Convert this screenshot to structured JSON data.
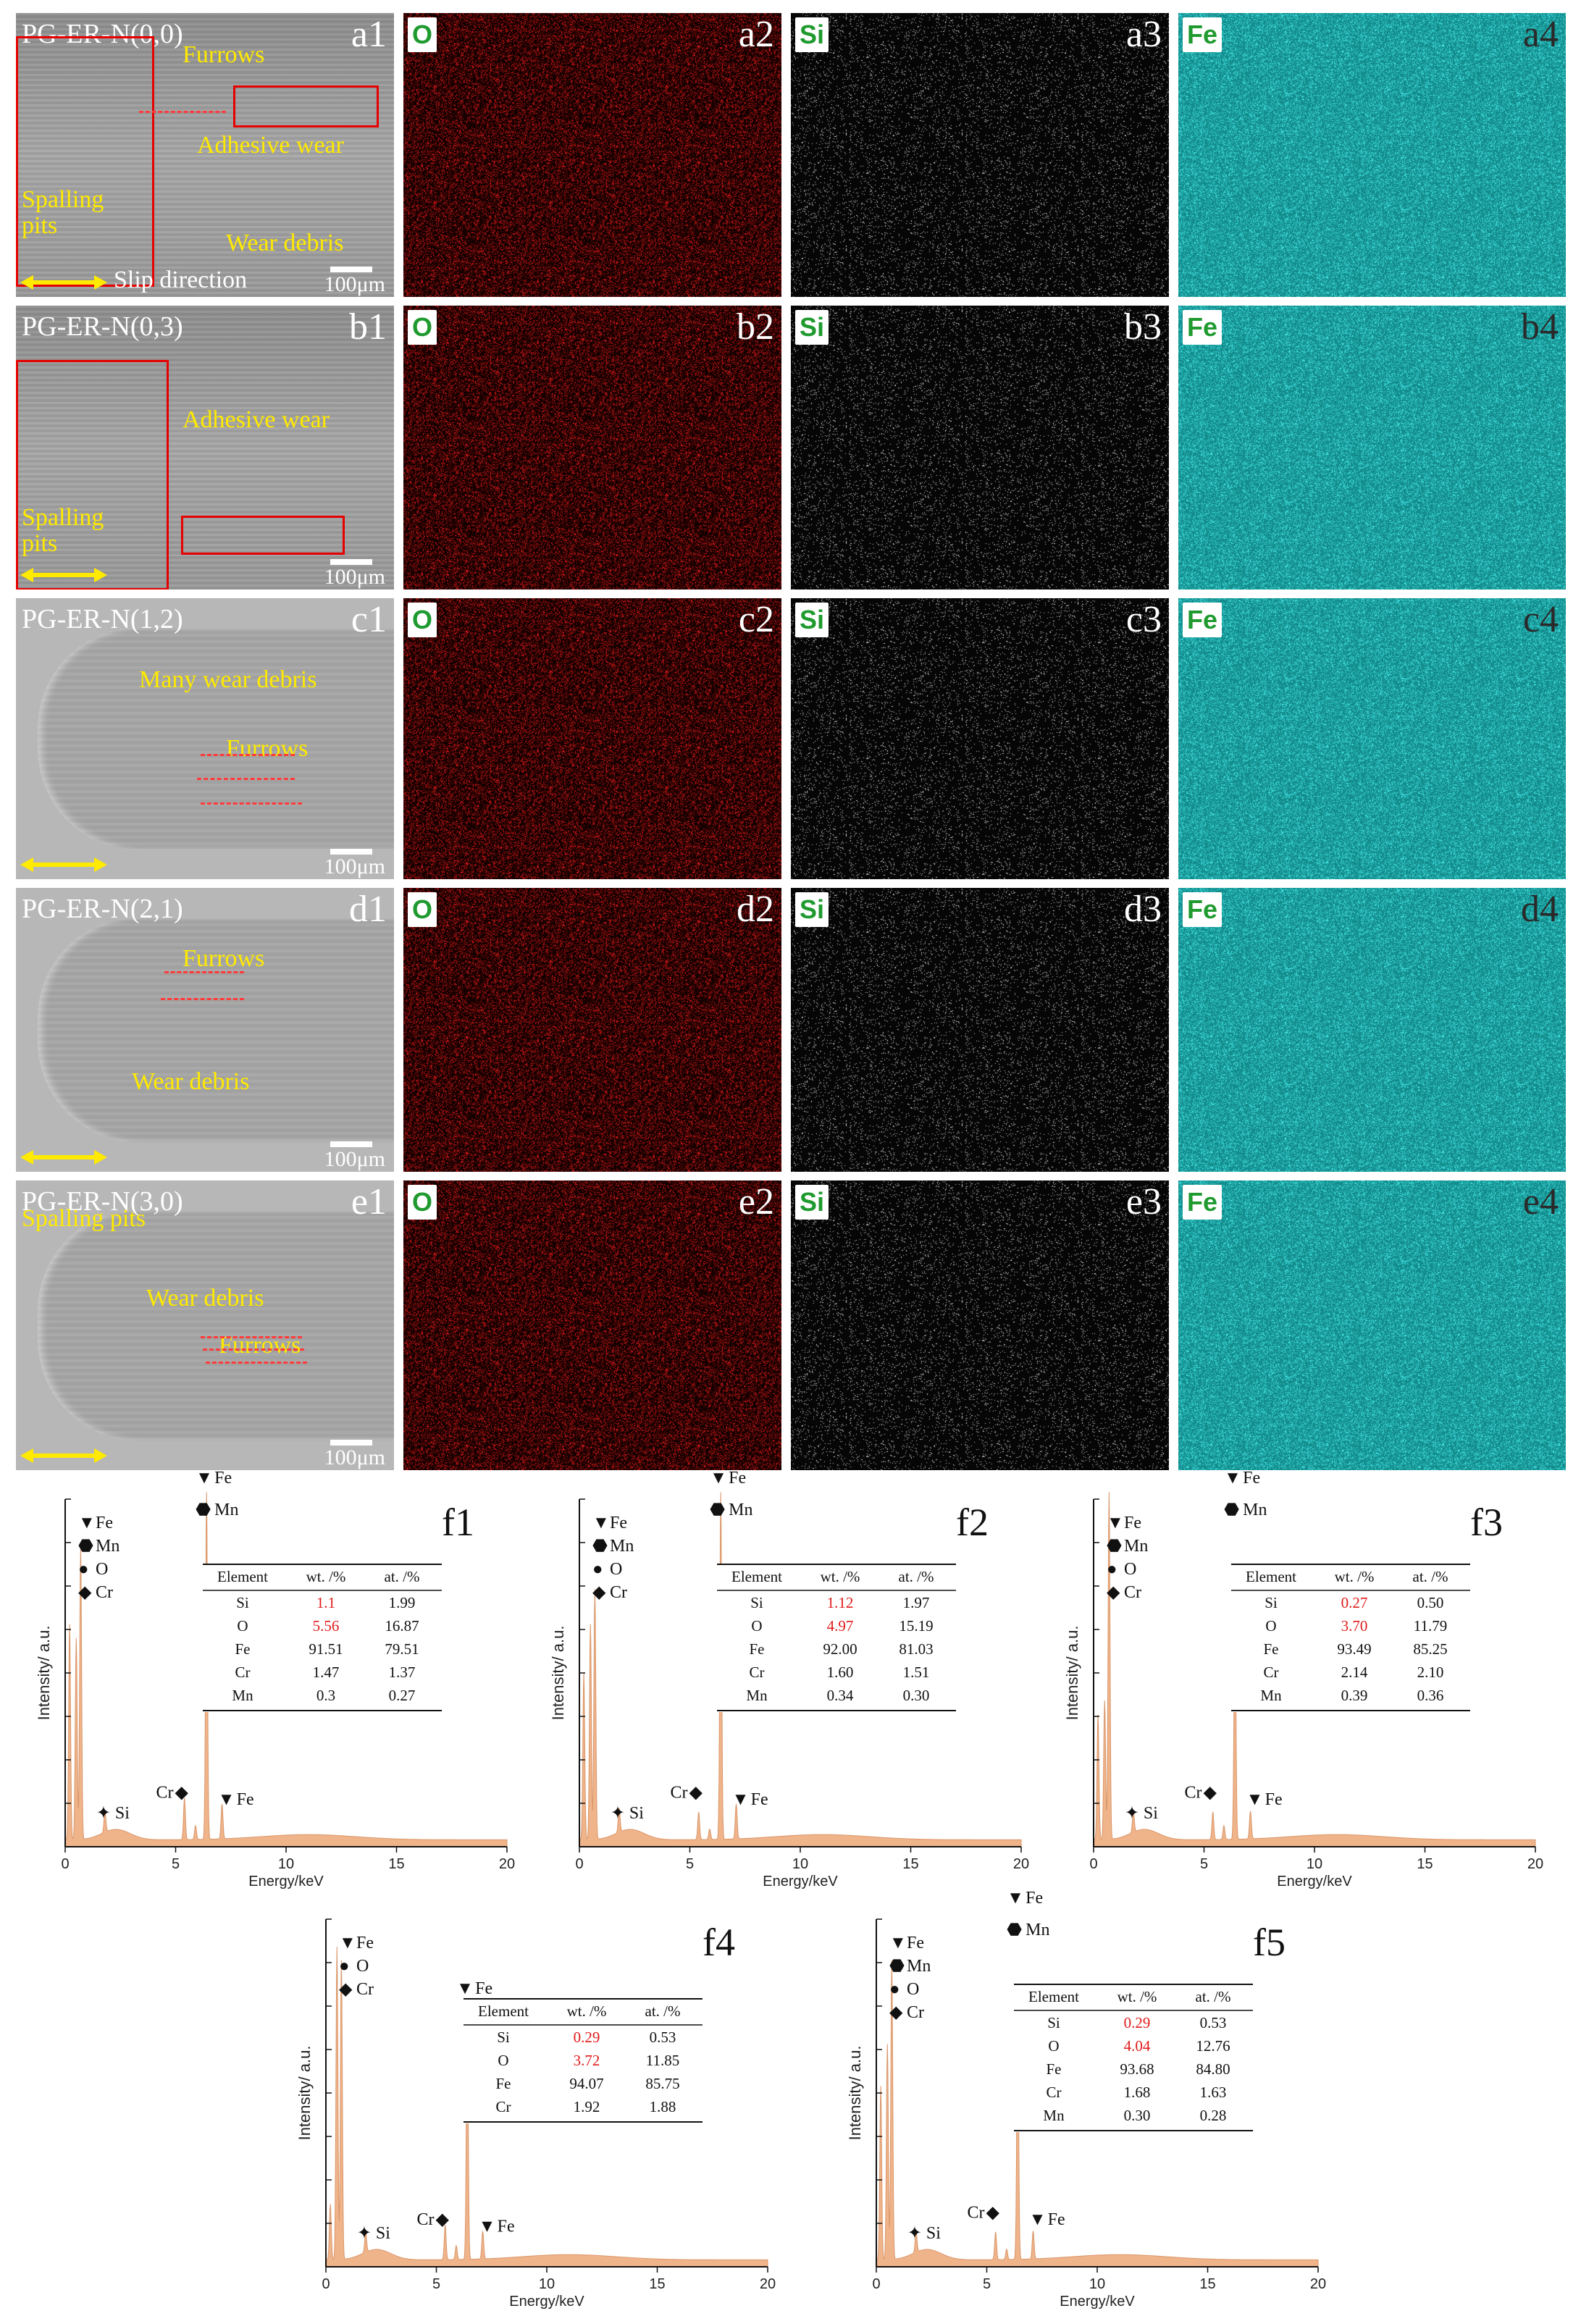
{
  "rows": [
    {
      "id": "a",
      "sample": "PG-ER-N(0,0)",
      "labels": [
        "a1",
        "a2",
        "a3",
        "a4"
      ],
      "annotations": [
        "Furrows",
        "Adhesive wear",
        "Spalling\npits",
        "Wear debris"
      ],
      "scale": "100μm",
      "slip": "Slip direction"
    },
    {
      "id": "b",
      "sample": "PG-ER-N(0,3)",
      "labels": [
        "b1",
        "b2",
        "b3",
        "b4"
      ],
      "annotations": [
        "Adhesive wear",
        "Spalling\npits"
      ],
      "scale": "100μm"
    },
    {
      "id": "c",
      "sample": "PG-ER-N(1,2)",
      "labels": [
        "c1",
        "c2",
        "c3",
        "c4"
      ],
      "annotations": [
        "Many wear debris",
        "Furrows"
      ],
      "scale": "100μm"
    },
    {
      "id": "d",
      "sample": "PG-ER-N(2,1)",
      "labels": [
        "d1",
        "d2",
        "d3",
        "d4"
      ],
      "annotations": [
        "Furrows",
        "Wear debris"
      ],
      "scale": "100μm"
    },
    {
      "id": "e",
      "sample": "PG-ER-N(3,0)",
      "labels": [
        "e1",
        "e2",
        "e3",
        "e4"
      ],
      "annotations": [
        "Spalling pits",
        "Wear debris",
        "Furrows"
      ],
      "scale": "100μm"
    }
  ],
  "element_tags": [
    "O",
    "Si",
    "Fe"
  ],
  "colors": {
    "o_map": "#e01010",
    "si_map": "#ffffff",
    "fe_map": "#2ecece",
    "annotation": "#ffea00",
    "box": "#e60000",
    "spectrum": "#f0b48a",
    "highlight": "#e01a1a"
  },
  "chart_data": [
    {
      "type": "area",
      "label": "f1",
      "xlabel": "Energy/keV",
      "ylabel": "Intensity/ a.u.",
      "xlim": [
        0,
        20
      ],
      "xticks": [
        "0",
        "5",
        "10",
        "15",
        "20"
      ],
      "peaks": [
        {
          "x": 0.2,
          "y": 0.62
        },
        {
          "x": 0.5,
          "y": 0.58
        },
        {
          "x": 0.7,
          "y": 0.84
        },
        {
          "x": 1.8,
          "y": 0.06
        },
        {
          "x": 5.4,
          "y": 0.12
        },
        {
          "x": 5.9,
          "y": 0.04
        },
        {
          "x": 6.4,
          "y": 1.0
        },
        {
          "x": 7.1,
          "y": 0.1
        }
      ],
      "legend": [
        "Fe",
        "Mn",
        "O",
        "Cr"
      ],
      "peak_labels": [
        "Fe",
        "Mn",
        "Si",
        "Cr",
        "Fe"
      ],
      "table": {
        "header": [
          "Element",
          "wt. /%",
          "at. /%"
        ],
        "rows": [
          [
            "Si",
            "1.1",
            "1.99"
          ],
          [
            "O",
            "5.56",
            "16.87"
          ],
          [
            "Fe",
            "91.51",
            "79.51"
          ],
          [
            "Cr",
            "1.47",
            "1.37"
          ],
          [
            "Mn",
            "0.3",
            "0.27"
          ]
        ]
      }
    },
    {
      "type": "area",
      "label": "f2",
      "xlabel": "Energy/keV",
      "ylabel": "Intensity/ a.u.",
      "xlim": [
        0,
        20
      ],
      "xticks": [
        "0",
        "5",
        "10",
        "15",
        "20"
      ],
      "peaks": [
        {
          "x": 0.2,
          "y": 0.48
        },
        {
          "x": 0.5,
          "y": 0.62
        },
        {
          "x": 0.7,
          "y": 0.72
        },
        {
          "x": 1.8,
          "y": 0.07
        },
        {
          "x": 5.4,
          "y": 0.08
        },
        {
          "x": 5.9,
          "y": 0.03
        },
        {
          "x": 6.4,
          "y": 1.0
        },
        {
          "x": 7.1,
          "y": 0.1
        }
      ],
      "legend": [
        "Fe",
        "Mn",
        "O",
        "Cr"
      ],
      "peak_labels": [
        "Fe",
        "Mn",
        "Si",
        "Cr",
        "Fe"
      ],
      "table": {
        "header": [
          "Element",
          "wt. /%",
          "at. /%"
        ],
        "rows": [
          [
            "Si",
            "1.12",
            "1.97"
          ],
          [
            "O",
            "4.97",
            "15.19"
          ],
          [
            "Fe",
            "92.00",
            "81.03"
          ],
          [
            "Cr",
            "1.60",
            "1.51"
          ],
          [
            "Mn",
            "0.34",
            "0.30"
          ]
        ]
      }
    },
    {
      "type": "area",
      "label": "f3",
      "xlabel": "Energy/keV",
      "ylabel": "Intensity/ a.u.",
      "xlim": [
        0,
        20
      ],
      "xticks": [
        "0",
        "5",
        "10",
        "15",
        "20"
      ],
      "peaks": [
        {
          "x": 0.2,
          "y": 0.36
        },
        {
          "x": 0.5,
          "y": 0.4
        },
        {
          "x": 0.7,
          "y": 1.0
        },
        {
          "x": 1.8,
          "y": 0.06
        },
        {
          "x": 5.4,
          "y": 0.08
        },
        {
          "x": 5.9,
          "y": 0.04
        },
        {
          "x": 6.4,
          "y": 0.72
        },
        {
          "x": 7.1,
          "y": 0.08
        }
      ],
      "legend": [
        "Fe",
        "Mn",
        "O",
        "Cr"
      ],
      "peak_labels": [
        "Fe",
        "Mn",
        "Si",
        "Cr",
        "Fe"
      ],
      "table": {
        "header": [
          "Element",
          "wt. /%",
          "at. /%"
        ],
        "rows": [
          [
            "Si",
            "0.27",
            "0.50"
          ],
          [
            "O",
            "3.70",
            "11.79"
          ],
          [
            "Fe",
            "93.49",
            "85.25"
          ],
          [
            "Cr",
            "2.14",
            "2.10"
          ],
          [
            "Mn",
            "0.39",
            "0.36"
          ]
        ]
      }
    },
    {
      "type": "area",
      "label": "f4",
      "xlabel": "Energy/keV",
      "ylabel": "Intensity/ a.u.",
      "xlim": [
        0,
        20
      ],
      "xticks": [
        "0",
        "5",
        "10",
        "15",
        "20"
      ],
      "peaks": [
        {
          "x": 0.2,
          "y": 0.16
        },
        {
          "x": 0.5,
          "y": 0.9
        },
        {
          "x": 0.7,
          "y": 0.86
        },
        {
          "x": 1.8,
          "y": 0.06
        },
        {
          "x": 5.4,
          "y": 0.1
        },
        {
          "x": 5.9,
          "y": 0.04
        },
        {
          "x": 6.4,
          "y": 0.74
        },
        {
          "x": 7.1,
          "y": 0.08
        }
      ],
      "legend": [
        "Fe",
        "O",
        "Cr"
      ],
      "peak_labels": [
        "Fe",
        "Si",
        "Cr",
        "Fe"
      ],
      "table": {
        "header": [
          "Element",
          "wt. /%",
          "at. /%"
        ],
        "rows": [
          [
            "Si",
            "0.29",
            "0.53"
          ],
          [
            "O",
            "3.72",
            "11.85"
          ],
          [
            "Fe",
            "94.07",
            "85.75"
          ],
          [
            "Cr",
            "1.92",
            "1.88"
          ]
        ]
      }
    },
    {
      "type": "area",
      "label": "f5",
      "xlabel": "Energy/keV",
      "ylabel": "Intensity/ a.u.",
      "xlim": [
        0,
        20
      ],
      "xticks": [
        "0",
        "5",
        "10",
        "15",
        "20"
      ],
      "peaks": [
        {
          "x": 0.2,
          "y": 0.5
        },
        {
          "x": 0.5,
          "y": 0.62
        },
        {
          "x": 0.7,
          "y": 0.86
        },
        {
          "x": 1.8,
          "y": 0.06
        },
        {
          "x": 5.4,
          "y": 0.08
        },
        {
          "x": 5.9,
          "y": 0.03
        },
        {
          "x": 6.4,
          "y": 0.74
        },
        {
          "x": 7.1,
          "y": 0.08
        }
      ],
      "legend": [
        "Fe",
        "Mn",
        "O",
        "Cr"
      ],
      "peak_labels": [
        "Fe",
        "Mn",
        "Si",
        "Cr",
        "Fe"
      ],
      "table": {
        "header": [
          "Element",
          "wt. /%",
          "at. /%"
        ],
        "rows": [
          [
            "Si",
            "0.29",
            "0.53"
          ],
          [
            "O",
            "4.04",
            "12.76"
          ],
          [
            "Fe",
            "93.68",
            "84.80"
          ],
          [
            "Cr",
            "1.68",
            "1.63"
          ],
          [
            "Mn",
            "0.30",
            "0.28"
          ]
        ]
      }
    }
  ]
}
